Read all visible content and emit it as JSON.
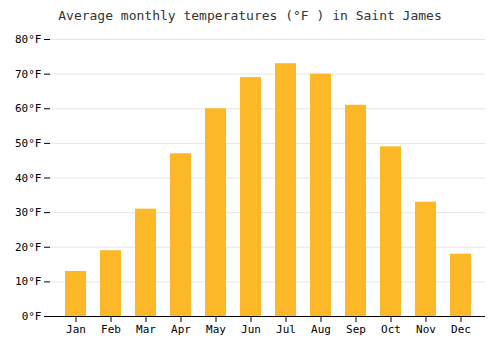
{
  "chart_data": {
    "type": "bar",
    "title": "Average monthly temperatures (°F ) in Saint James",
    "categories": [
      "Jan",
      "Feb",
      "Mar",
      "Apr",
      "May",
      "Jun",
      "Jul",
      "Aug",
      "Sep",
      "Oct",
      "Nov",
      "Dec"
    ],
    "values": [
      13,
      19,
      31,
      47,
      60,
      69,
      73,
      70,
      61,
      49,
      33,
      18
    ],
    "color": "#FDB827",
    "ylim": [
      0,
      80
    ],
    "yticks": [
      {
        "value": 0,
        "label": "0°F"
      },
      {
        "value": 10,
        "label": "10°F"
      },
      {
        "value": 20,
        "label": "20°F"
      },
      {
        "value": 30,
        "label": "30°F"
      },
      {
        "value": 40,
        "label": "40°F"
      },
      {
        "value": 50,
        "label": "50°F"
      },
      {
        "value": 60,
        "label": "60°F"
      },
      {
        "value": 70,
        "label": "70°F"
      },
      {
        "value": 80,
        "label": "80°F"
      }
    ],
    "grid": true
  }
}
